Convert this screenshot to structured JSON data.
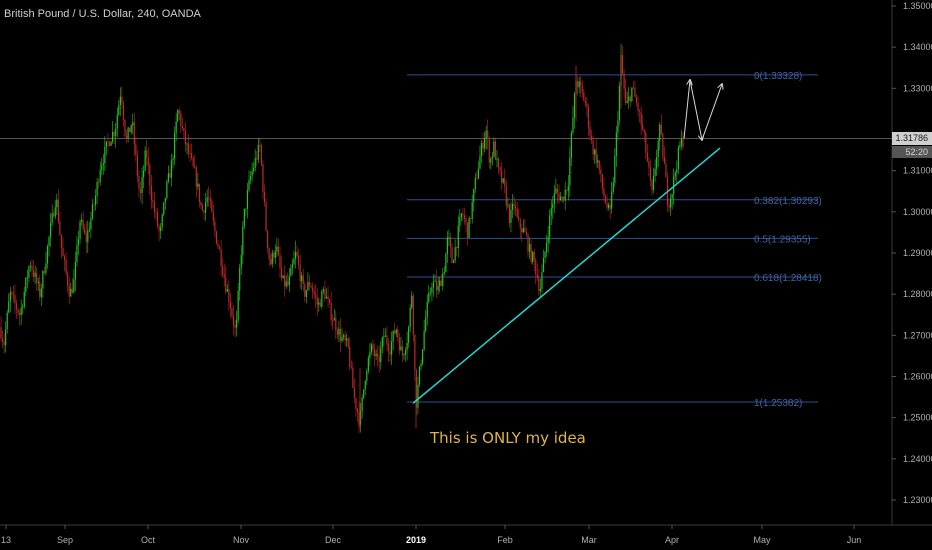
{
  "header": {
    "symbol_title": "British Pound / U.S. Dollar, 240, OANDA"
  },
  "annotation": {
    "text": "This is ONLY my idea",
    "color": "#e0b44a"
  },
  "price_axis": {
    "current_price_label": "1.31786",
    "countdown_label": "52:20"
  },
  "colors": {
    "background": "#000000",
    "bull": "#22c922",
    "bear": "#c22a2a",
    "fib_line": "#2f4f8f",
    "fib_label": "#3e63a8",
    "trendline": "#20d8d0",
    "axis_text": "#b0b0b0"
  },
  "chart_data": {
    "type": "candlestick",
    "title": "British Pound / U.S. Dollar, 240, OANDA",
    "timeframe": "240",
    "source": "OANDA",
    "ylim": [
      1.225,
      1.355
    ],
    "y_ticks": [
      1.23,
      1.24,
      1.25,
      1.26,
      1.27,
      1.28,
      1.29,
      1.3,
      1.31,
      1.33,
      1.34,
      1.35
    ],
    "y_tick_labels": [
      "1.23000",
      "1.24000",
      "1.25000",
      "1.26000",
      "1.27000",
      "1.28000",
      "1.29000",
      "1.30000",
      "1.31000",
      "1.33000",
      "1.34000",
      "1.35000"
    ],
    "x_labels": [
      "13",
      "Sep",
      "Oct",
      "Nov",
      "Dec",
      "2019",
      "Feb",
      "Mar",
      "Apr",
      "May",
      "Jun"
    ],
    "current_price": 1.31786,
    "price_path": [
      [
        0,
        1.272
      ],
      [
        4,
        1.268
      ],
      [
        10,
        1.28
      ],
      [
        20,
        1.275
      ],
      [
        30,
        1.288
      ],
      [
        40,
        1.28
      ],
      [
        50,
        1.295
      ],
      [
        56,
        1.304
      ],
      [
        62,
        1.29
      ],
      [
        70,
        1.28
      ],
      [
        74,
        1.283
      ],
      [
        80,
        1.298
      ],
      [
        86,
        1.293
      ],
      [
        95,
        1.303
      ],
      [
        100,
        1.311
      ],
      [
        110,
        1.318
      ],
      [
        115,
        1.32
      ],
      [
        121,
        1.33
      ],
      [
        126,
        1.317
      ],
      [
        132,
        1.322
      ],
      [
        140,
        1.303
      ],
      [
        146,
        1.315
      ],
      [
        152,
        1.303
      ],
      [
        160,
        1.294
      ],
      [
        166,
        1.305
      ],
      [
        172,
        1.312
      ],
      [
        178,
        1.325
      ],
      [
        184,
        1.318
      ],
      [
        190,
        1.313
      ],
      [
        196,
        1.308
      ],
      [
        202,
        1.3
      ],
      [
        208,
        1.304
      ],
      [
        214,
        1.296
      ],
      [
        220,
        1.29
      ],
      [
        226,
        1.282
      ],
      [
        230,
        1.278
      ],
      [
        236,
        1.27
      ],
      [
        240,
        1.287
      ],
      [
        244,
        1.299
      ],
      [
        250,
        1.308
      ],
      [
        256,
        1.313
      ],
      [
        260,
        1.316
      ],
      [
        266,
        1.296
      ],
      [
        270,
        1.287
      ],
      [
        276,
        1.292
      ],
      [
        282,
        1.283
      ],
      [
        288,
        1.282
      ],
      [
        296,
        1.29
      ],
      [
        304,
        1.28
      ],
      [
        310,
        1.283
      ],
      [
        318,
        1.277
      ],
      [
        324,
        1.281
      ],
      [
        330,
        1.276
      ],
      [
        340,
        1.27
      ],
      [
        348,
        1.267
      ],
      [
        354,
        1.255
      ],
      [
        360,
        1.249
      ],
      [
        366,
        1.262
      ],
      [
        372,
        1.267
      ],
      [
        378,
        1.263
      ],
      [
        384,
        1.27
      ],
      [
        390,
        1.267
      ],
      [
        396,
        1.272
      ],
      [
        402,
        1.265
      ],
      [
        408,
        1.27
      ],
      [
        412,
        1.281
      ],
      [
        416,
        1.253
      ],
      [
        420,
        1.262
      ],
      [
        426,
        1.275
      ],
      [
        432,
        1.283
      ],
      [
        438,
        1.281
      ],
      [
        444,
        1.286
      ],
      [
        448,
        1.294
      ],
      [
        452,
        1.288
      ],
      [
        456,
        1.292
      ],
      [
        462,
        1.3
      ],
      [
        468,
        1.295
      ],
      [
        476,
        1.308
      ],
      [
        482,
        1.316
      ],
      [
        486,
        1.32
      ],
      [
        490,
        1.312
      ],
      [
        494,
        1.316
      ],
      [
        498,
        1.31
      ],
      [
        504,
        1.306
      ],
      [
        510,
        1.298
      ],
      [
        514,
        1.302
      ],
      [
        518,
        1.297
      ],
      [
        522,
        1.296
      ],
      [
        526,
        1.294
      ],
      [
        530,
        1.29
      ],
      [
        534,
        1.288
      ],
      [
        540,
        1.281
      ],
      [
        546,
        1.292
      ],
      [
        552,
        1.302
      ],
      [
        556,
        1.305
      ],
      [
        562,
        1.303
      ],
      [
        568,
        1.307
      ],
      [
        572,
        1.32
      ],
      [
        576,
        1.332
      ],
      [
        580,
        1.33
      ],
      [
        586,
        1.326
      ],
      [
        592,
        1.316
      ],
      [
        598,
        1.312
      ],
      [
        602,
        1.306
      ],
      [
        606,
        1.302
      ],
      [
        610,
        1.299
      ],
      [
        614,
        1.31
      ],
      [
        618,
        1.324
      ],
      [
        621,
        1.337
      ],
      [
        626,
        1.325
      ],
      [
        632,
        1.33
      ],
      [
        638,
        1.325
      ],
      [
        644,
        1.318
      ],
      [
        648,
        1.311
      ],
      [
        652,
        1.304
      ],
      [
        656,
        1.313
      ],
      [
        660,
        1.32
      ],
      [
        664,
        1.312
      ],
      [
        668,
        1.302
      ],
      [
        672,
        1.305
      ],
      [
        676,
        1.311
      ],
      [
        680,
        1.316
      ],
      [
        684,
        1.31786
      ]
    ],
    "fib_retracement": [
      {
        "label": "0(1.33328)",
        "value": 1.33328
      },
      {
        "label": "0.382(1.30293)",
        "value": 1.30293
      },
      {
        "label": "0.5(1.29355)",
        "value": 1.29355
      },
      {
        "label": "0.618(1.28418)",
        "value": 1.28418
      },
      {
        "label": "1(1.25382)",
        "value": 1.25382
      }
    ],
    "fib_x_range": [
      407,
      818
    ],
    "trendline": {
      "from": [
        413,
        1.2535
      ],
      "to": [
        720,
        1.3155
      ]
    },
    "projection": [
      [
        684,
        1.3178
      ],
      [
        690,
        1.332
      ],
      [
        702,
        1.3175
      ],
      [
        722,
        1.331
      ]
    ]
  }
}
